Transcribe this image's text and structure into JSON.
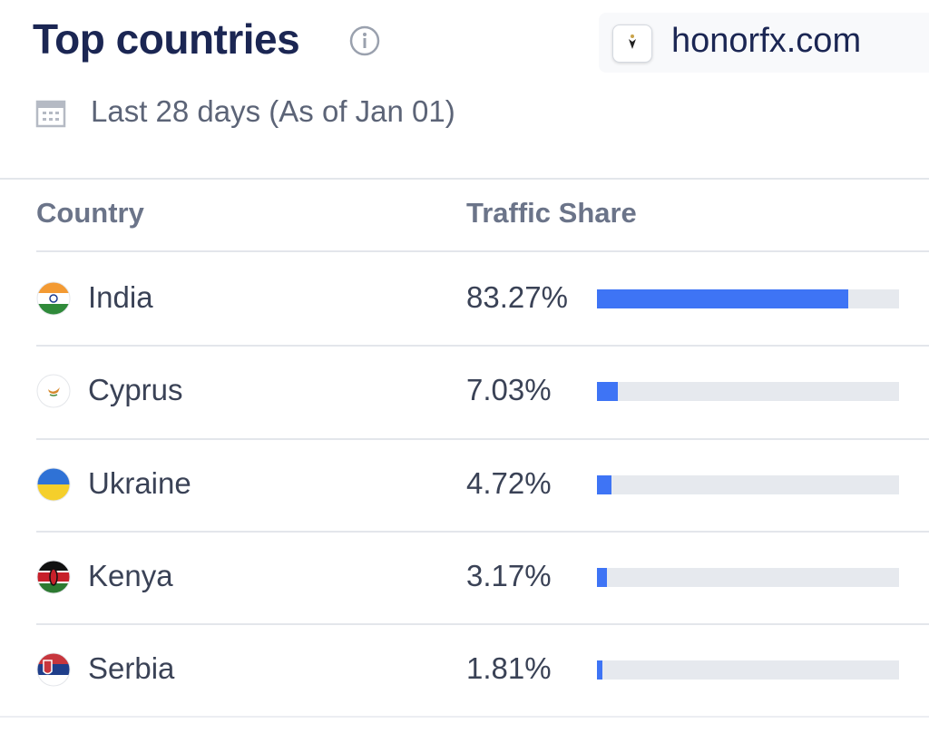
{
  "header": {
    "title": "Top countries",
    "domain": "honorfx.com",
    "period": "Last 28 days (As of Jan 01)"
  },
  "table": {
    "columns": [
      "Country",
      "Traffic Share"
    ],
    "rows": [
      {
        "country": "India",
        "share": 83.27,
        "share_label": "83.27%"
      },
      {
        "country": "Cyprus",
        "share": 7.03,
        "share_label": "7.03%"
      },
      {
        "country": "Ukraine",
        "share": 4.72,
        "share_label": "4.72%"
      },
      {
        "country": "Kenya",
        "share": 3.17,
        "share_label": "3.17%"
      },
      {
        "country": "Serbia",
        "share": 1.81,
        "share_label": "1.81%"
      }
    ]
  }
}
